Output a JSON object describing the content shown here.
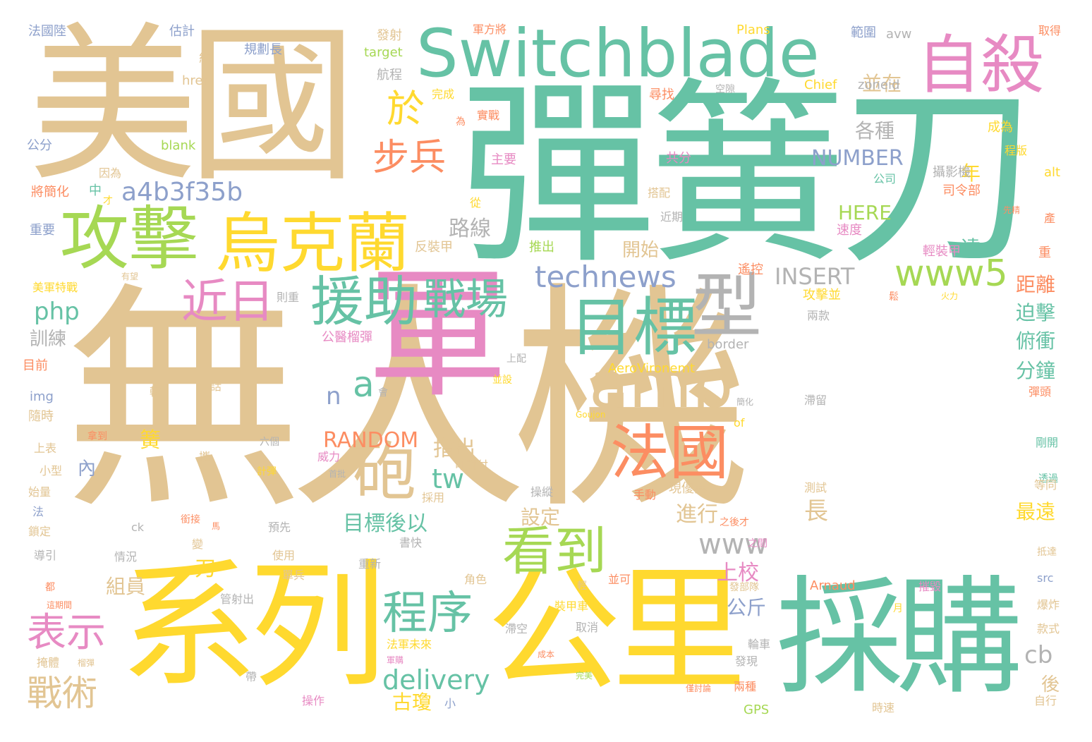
{
  "palette": {
    "tan": "#E2C593",
    "teal": "#66C2A5",
    "yellow": "#FFD92F",
    "pink": "#E78AC3",
    "green": "#A6D854",
    "orange": "#FC8D62",
    "blue": "#8DA0CB",
    "gray": "#B3B3B3"
  },
  "words": [
    {
      "text": "無人機",
      "color": "tan"
    },
    {
      "text": "彈簧刀",
      "color": "teal"
    },
    {
      "text": "美國",
      "color": "tan"
    },
    {
      "text": "Switchblade",
      "color": "teal"
    },
    {
      "text": "軍",
      "color": "pink"
    },
    {
      "text": "系列",
      "color": "yellow"
    },
    {
      "text": "公里",
      "color": "yellow"
    },
    {
      "text": "採購",
      "color": "teal"
    },
    {
      "text": "自殺",
      "color": "pink"
    },
    {
      "text": "攻擊",
      "color": "green"
    },
    {
      "text": "烏克蘭",
      "color": "yellow"
    },
    {
      "text": "援助",
      "color": "teal"
    },
    {
      "text": "目標",
      "color": "teal"
    },
    {
      "text": "型",
      "color": "gray"
    },
    {
      "text": "amp",
      "color": "tan"
    },
    {
      "text": "砲",
      "color": "tan"
    },
    {
      "text": "法國",
      "color": "orange"
    },
    {
      "text": "看到",
      "color": "green"
    },
    {
      "text": "程序",
      "color": "teal"
    },
    {
      "text": "近日",
      "color": "pink"
    },
    {
      "text": "戰場",
      "color": "teal"
    },
    {
      "text": "technews",
      "color": "blue"
    },
    {
      "text": "www5",
      "color": "green"
    },
    {
      "text": "步兵",
      "color": "orange"
    },
    {
      "text": "於",
      "color": "yellow"
    },
    {
      "text": "a4b3f35b",
      "color": "blue"
    },
    {
      "text": "表示",
      "color": "pink"
    },
    {
      "text": "戰術",
      "color": "tan"
    },
    {
      "text": "a",
      "color": "teal"
    },
    {
      "text": "n",
      "color": "blue"
    },
    {
      "text": "INSERT",
      "color": "gray"
    },
    {
      "text": "RANDOM",
      "color": "orange"
    },
    {
      "text": "NUMBER",
      "color": "blue"
    },
    {
      "text": "HERE",
      "color": "green"
    },
    {
      "text": "delivery",
      "color": "teal"
    },
    {
      "text": "www",
      "color": "gray"
    },
    {
      "text": "tw",
      "color": "teal"
    },
    {
      "text": "php",
      "color": "teal"
    },
    {
      "text": "cb",
      "color": "gray"
    },
    {
      "text": "路線",
      "color": "gray"
    },
    {
      "text": "各種",
      "color": "gray"
    },
    {
      "text": "並在",
      "color": "tan"
    },
    {
      "text": "年",
      "color": "yellow"
    },
    {
      "text": "達",
      "color": "teal"
    },
    {
      "text": "距離",
      "color": "orange"
    },
    {
      "text": "迫擊",
      "color": "teal"
    },
    {
      "text": "俯衝",
      "color": "teal"
    },
    {
      "text": "分鐘",
      "color": "teal"
    },
    {
      "text": "最遠",
      "color": "yellow"
    },
    {
      "text": "後",
      "color": "tan"
    },
    {
      "text": "目標後以",
      "color": "teal"
    },
    {
      "text": "指出",
      "color": "tan"
    },
    {
      "text": "設定",
      "color": "tan"
    },
    {
      "text": "進行",
      "color": "tan"
    },
    {
      "text": "上校",
      "color": "pink"
    },
    {
      "text": "公斤",
      "color": "blue"
    },
    {
      "text": "長",
      "color": "tan"
    },
    {
      "text": "古瓊",
      "color": "yellow"
    },
    {
      "text": "組員",
      "color": "tan"
    },
    {
      "text": "訓練",
      "color": "gray"
    },
    {
      "text": "開始",
      "color": "tan"
    },
    {
      "text": "內",
      "color": "blue"
    },
    {
      "text": "簧",
      "color": "yellow"
    },
    {
      "text": "刀",
      "color": "yellow"
    },
    {
      "text": "法國陸",
      "color": "blue"
    },
    {
      "text": "估計",
      "color": "blue"
    },
    {
      "text": "約",
      "color": "tan"
    },
    {
      "text": "規劃長",
      "color": "blue"
    },
    {
      "text": "發射",
      "color": "tan"
    },
    {
      "text": "軍方將",
      "color": "orange"
    },
    {
      "text": "Plans",
      "color": "yellow"
    },
    {
      "text": "範圍",
      "color": "blue"
    },
    {
      "text": "avw",
      "color": "gray"
    },
    {
      "text": "取得",
      "color": "orange"
    },
    {
      "text": "target",
      "color": "green"
    },
    {
      "text": "航程",
      "color": "gray"
    },
    {
      "text": "href",
      "color": "tan"
    },
    {
      "text": "完成",
      "color": "yellow"
    },
    {
      "text": "空隙",
      "color": "gray"
    },
    {
      "text": "Chief",
      "color": "yellow"
    },
    {
      "text": "zoneid",
      "color": "gray"
    },
    {
      "text": "尋找",
      "color": "orange"
    },
    {
      "text": "為",
      "color": "orange"
    },
    {
      "text": "實戰",
      "color": "orange"
    },
    {
      "text": "成為",
      "color": "yellow"
    },
    {
      "text": "程版",
      "color": "yellow"
    },
    {
      "text": "公分",
      "color": "blue"
    },
    {
      "text": "blank",
      "color": "green"
    },
    {
      "text": "主要",
      "color": "pink"
    },
    {
      "text": "共分",
      "color": "pink"
    },
    {
      "text": "因為",
      "color": "tan"
    },
    {
      "text": "將簡化",
      "color": "orange"
    },
    {
      "text": "中",
      "color": "teal"
    },
    {
      "text": "才",
      "color": "yellow"
    },
    {
      "text": "公司",
      "color": "teal"
    },
    {
      "text": "攝影機",
      "color": "gray"
    },
    {
      "text": "alt",
      "color": "yellow"
    },
    {
      "text": "司令部",
      "color": "orange"
    },
    {
      "text": "搭配",
      "color": "tan"
    },
    {
      "text": "近期",
      "color": "gray"
    },
    {
      "text": "從",
      "color": "yellow"
    },
    {
      "text": "先精",
      "color": "orange"
    },
    {
      "text": "重要",
      "color": "blue"
    },
    {
      "text": "速度",
      "color": "pink"
    },
    {
      "text": "產",
      "color": "orange"
    },
    {
      "text": "反裝甲",
      "color": "tan"
    },
    {
      "text": "推出",
      "color": "green"
    },
    {
      "text": "輕裝甲",
      "color": "pink"
    },
    {
      "text": "重",
      "color": "orange"
    },
    {
      "text": "遙控",
      "color": "orange"
    },
    {
      "text": "有望",
      "color": "tan"
    },
    {
      "text": "美軍特戰",
      "color": "yellow"
    },
    {
      "text": "則重",
      "color": "gray"
    },
    {
      "text": "攻擊並",
      "color": "yellow"
    },
    {
      "text": "鬆",
      "color": "orange"
    },
    {
      "text": "火力",
      "color": "yellow"
    },
    {
      "text": "兩款",
      "color": "gray"
    },
    {
      "text": "border",
      "color": "gray"
    },
    {
      "text": "目前",
      "color": "orange"
    },
    {
      "text": "公醫榴彈",
      "color": "pink"
    },
    {
      "text": "上配",
      "color": "gray"
    },
    {
      "text": "AeroVironemt",
      "color": "yellow"
    },
    {
      "text": "img",
      "color": "blue"
    },
    {
      "text": "較",
      "color": "tan"
    },
    {
      "text": "話",
      "color": "tan"
    },
    {
      "text": "並設",
      "color": "yellow"
    },
    {
      "text": "彈頭",
      "color": "orange"
    },
    {
      "text": "隨時",
      "color": "tan"
    },
    {
      "text": "會",
      "color": "gray"
    },
    {
      "text": "簡化",
      "color": "gray"
    },
    {
      "text": "滯留",
      "color": "gray"
    },
    {
      "text": "Goujon",
      "color": "yellow"
    },
    {
      "text": "of",
      "color": "yellow"
    },
    {
      "text": "拿到",
      "color": "orange"
    },
    {
      "text": "可對付",
      "color": "tan"
    },
    {
      "text": "上表",
      "color": "tan"
    },
    {
      "text": "攜",
      "color": "tan"
    },
    {
      "text": "六個",
      "color": "gray"
    },
    {
      "text": "威力",
      "color": "pink"
    },
    {
      "text": "剛開",
      "color": "teal"
    },
    {
      "text": "小型",
      "color": "tan"
    },
    {
      "text": "計彈",
      "color": "yellow"
    },
    {
      "text": "首批",
      "color": "gray"
    },
    {
      "text": "透過",
      "color": "teal"
    },
    {
      "text": "始量",
      "color": "tan"
    },
    {
      "text": "手動",
      "color": "orange"
    },
    {
      "text": "現優異",
      "color": "tan"
    },
    {
      "text": "測試",
      "color": "tan"
    },
    {
      "text": "等同",
      "color": "tan"
    },
    {
      "text": "法",
      "color": "blue"
    },
    {
      "text": "採用",
      "color": "tan"
    },
    {
      "text": "操縱",
      "color": "gray"
    },
    {
      "text": "鎖定",
      "color": "tan"
    },
    {
      "text": "ck",
      "color": "gray"
    },
    {
      "text": "銜接",
      "color": "orange"
    },
    {
      "text": "馬",
      "color": "orange"
    },
    {
      "text": "預先",
      "color": "gray"
    },
    {
      "text": "之後才",
      "color": "orange"
    },
    {
      "text": "導引",
      "color": "gray"
    },
    {
      "text": "情況",
      "color": "gray"
    },
    {
      "text": "變",
      "color": "tan"
    },
    {
      "text": "使用",
      "color": "tan"
    },
    {
      "text": "書快",
      "color": "gray"
    },
    {
      "text": "之間",
      "color": "pink"
    },
    {
      "text": "抵達",
      "color": "tan"
    },
    {
      "text": "重新",
      "color": "gray"
    },
    {
      "text": "都",
      "color": "orange"
    },
    {
      "text": "單兵",
      "color": "tan"
    },
    {
      "text": "角色",
      "color": "tan"
    },
    {
      "text": "輕",
      "color": "tan"
    },
    {
      "text": "並可",
      "color": "orange"
    },
    {
      "text": "發部隊",
      "color": "tan"
    },
    {
      "text": "Arnaud",
      "color": "orange"
    },
    {
      "text": "摧毀",
      "color": "pink"
    },
    {
      "text": "src",
      "color": "blue"
    },
    {
      "text": "這期間",
      "color": "orange"
    },
    {
      "text": "管射出",
      "color": "gray"
    },
    {
      "text": "裝甲車",
      "color": "yellow"
    },
    {
      "text": "月",
      "color": "yellow"
    },
    {
      "text": "爆炸",
      "color": "tan"
    },
    {
      "text": "滯空",
      "color": "gray"
    },
    {
      "text": "取消",
      "color": "gray"
    },
    {
      "text": "法軍未來",
      "color": "yellow"
    },
    {
      "text": "輪車",
      "color": "gray"
    },
    {
      "text": "款式",
      "color": "tan"
    },
    {
      "text": "掩體",
      "color": "tan"
    },
    {
      "text": "榴彈",
      "color": "tan"
    },
    {
      "text": "軍購",
      "color": "pink"
    },
    {
      "text": "成本",
      "color": "orange"
    },
    {
      "text": "發現",
      "color": "gray"
    },
    {
      "text": "帶",
      "color": "gray"
    },
    {
      "text": "完美",
      "color": "green"
    },
    {
      "text": "兩種",
      "color": "orange"
    },
    {
      "text": "時速",
      "color": "tan"
    },
    {
      "text": "自行",
      "color": "tan"
    },
    {
      "text": "操作",
      "color": "pink"
    },
    {
      "text": "小",
      "color": "blue"
    },
    {
      "text": "僅討論",
      "color": "orange"
    },
    {
      "text": "GPS",
      "color": "green"
    }
  ]
}
